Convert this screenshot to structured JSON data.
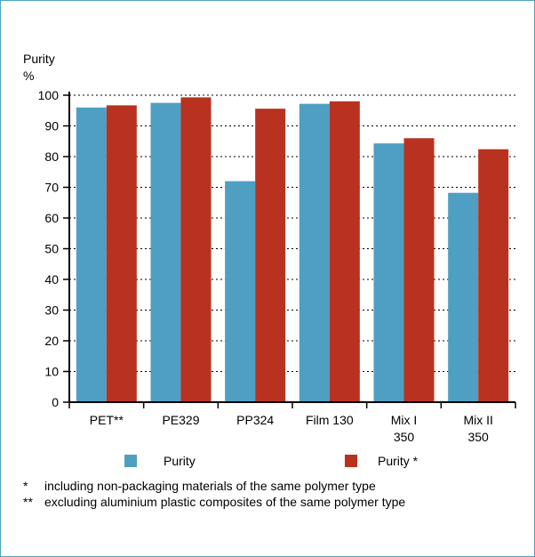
{
  "colors": {
    "series1": "#4f9fc2",
    "series2": "#b8321f",
    "frame": "#4fa3c7"
  },
  "chart_data": {
    "type": "bar",
    "ylabel_line1": "Purity",
    "ylabel_line2": "%",
    "ylim": [
      0,
      100
    ],
    "yticks": [
      "100",
      "90",
      "80",
      "70",
      "60",
      "50",
      "40",
      "30",
      "20",
      "10",
      "0"
    ],
    "grid": "dotted horizontal",
    "categories": [
      [
        "PET**"
      ],
      [
        "PE329"
      ],
      [
        "PP324"
      ],
      [
        "Film 130"
      ],
      [
        "Mix I",
        "350"
      ],
      [
        "Mix II",
        "350"
      ]
    ],
    "series": [
      {
        "name": "Purity",
        "values": [
          96,
          97.5,
          72,
          97.2,
          84.3,
          68.2
        ]
      },
      {
        "name": "Purity *",
        "values": [
          96.7,
          99.3,
          95.6,
          98,
          86,
          82.4
        ]
      }
    ],
    "legend_position": "bottom"
  },
  "footnotes": [
    {
      "mark": "*",
      "text": "including non-packaging materials of the same polymer type"
    },
    {
      "mark": "**",
      "text": "excluding aluminium plastic composites of the same polymer type"
    }
  ]
}
